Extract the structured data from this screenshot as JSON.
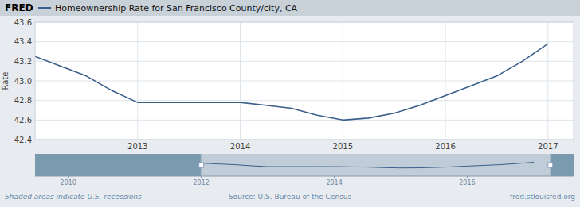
{
  "chart_data": [
    {
      "type": "line",
      "title": "Homeownership Rate for San Francisco County/city, CA",
      "ylabel": "Rate",
      "x": [
        2012.0,
        2012.25,
        2012.5,
        2012.75,
        2013.0,
        2013.25,
        2013.5,
        2013.75,
        2014.0,
        2014.25,
        2014.5,
        2014.75,
        2015.0,
        2015.25,
        2015.5,
        2015.75,
        2016.0,
        2016.25,
        2016.5,
        2016.75,
        2017.0
      ],
      "values": [
        43.25,
        43.15,
        43.05,
        42.9,
        42.78,
        42.78,
        42.78,
        42.78,
        42.78,
        42.75,
        42.72,
        42.65,
        42.6,
        42.62,
        42.67,
        42.75,
        42.85,
        42.95,
        43.05,
        43.2,
        43.38
      ],
      "color": "#3a5f8a",
      "xlim": [
        2012.0,
        2017.25
      ],
      "xticks": [
        2013,
        2014,
        2015,
        2016,
        2017
      ],
      "ylim": [
        42.4,
        43.6
      ],
      "yticks": [
        42.4,
        42.6,
        42.8,
        {
          "value": 43.0,
          "label": "43.0"
        },
        43.2,
        43.4,
        43.6
      ],
      "grid": true,
      "annotations": [
        "FRED",
        "Shaded areas indicate U.S. recessions",
        "Source: U.S. Bureau of the Census",
        "fred.stlouisfed.org"
      ]
    },
    {
      "type": "line",
      "x": [
        2012.0,
        2012.25,
        2012.5,
        2012.75,
        2013.0,
        2013.25,
        2013.5,
        2013.75,
        2014.0,
        2014.25,
        2014.5,
        2014.75,
        2015.0,
        2015.25,
        2015.5,
        2015.75,
        2016.0,
        2016.25,
        2016.5,
        2016.75,
        2017.0
      ],
      "values": [
        43.25,
        43.15,
        43.05,
        42.9,
        42.78,
        42.78,
        42.78,
        42.78,
        42.78,
        42.75,
        42.72,
        42.65,
        42.6,
        42.62,
        42.67,
        42.75,
        42.85,
        42.95,
        43.05,
        43.2,
        43.38
      ],
      "color": "#3a5f8a",
      "xlim": [
        2009.5,
        2017.6
      ],
      "xticks": [
        2010,
        2012,
        2014,
        2016
      ],
      "ylim": [
        41.5,
        44.5
      ],
      "tick_labels": "x"
    }
  ]
}
